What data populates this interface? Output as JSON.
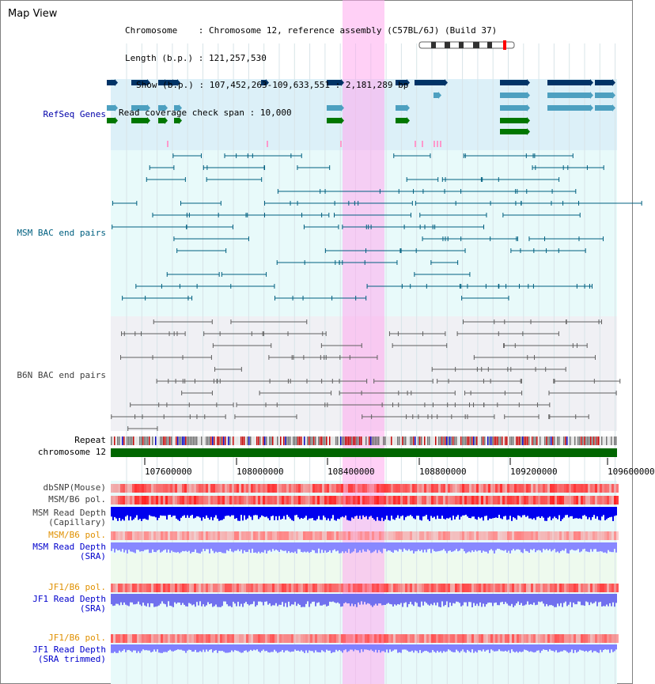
{
  "title": "Map View",
  "header": {
    "chromosome_label": "Chromosome",
    "chromosome_value": "Chromosome 12, reference assembly (C57BL/6J) (Build 37)",
    "length_label": "Length (b.p.)",
    "length_value": "121,257,530",
    "show_label": "Show (b.p.)",
    "show_value": "107,452,263-109,633,551 : 2,181,289 bp",
    "coverage_label": "Read coverage check span",
    "coverage_value": "10,000"
  },
  "tracks": {
    "refseq": "RefSeq Genes",
    "msm_bac": "MSM BAC end pairs",
    "b6n_bac": "B6N BAC end pairs",
    "repeat": "Repeat",
    "chromosome": "chromosome 12",
    "dbsnp": "dbSNP(Mouse)",
    "msm_b6_pol_1": "MSM/B6 pol.",
    "msm_depth_cap_1": "MSM Read Depth",
    "msm_depth_cap_2": "(Capillary)",
    "msm_b6_pol_2": "MSM/B6 pol.",
    "msm_depth_sra_1": "MSM Read Depth",
    "msm_depth_sra_2": "(SRA)",
    "jf1_b6_pol_1": "JF1/B6 pol.",
    "jf1_depth_sra_1": "JF1 Read Depth",
    "jf1_depth_sra_2": "(SRA)",
    "jf1_b6_pol_2": "JF1/B6 pol.",
    "jf1_depth_trim_1": "JF1 Read Depth",
    "jf1_depth_trim_2": "(SRA trimmed)"
  },
  "axis": {
    "ticks": [
      "107600000",
      "108000000",
      "108400000",
      "108800000",
      "109200000",
      "109600000"
    ]
  },
  "colors": {
    "refseq_label": "#0000aa",
    "msm_label": "#006080",
    "b6n_label": "#404040",
    "orange_label": "#e09000",
    "blue_label": "#0000cc",
    "highlight": "#ffaaee"
  }
}
